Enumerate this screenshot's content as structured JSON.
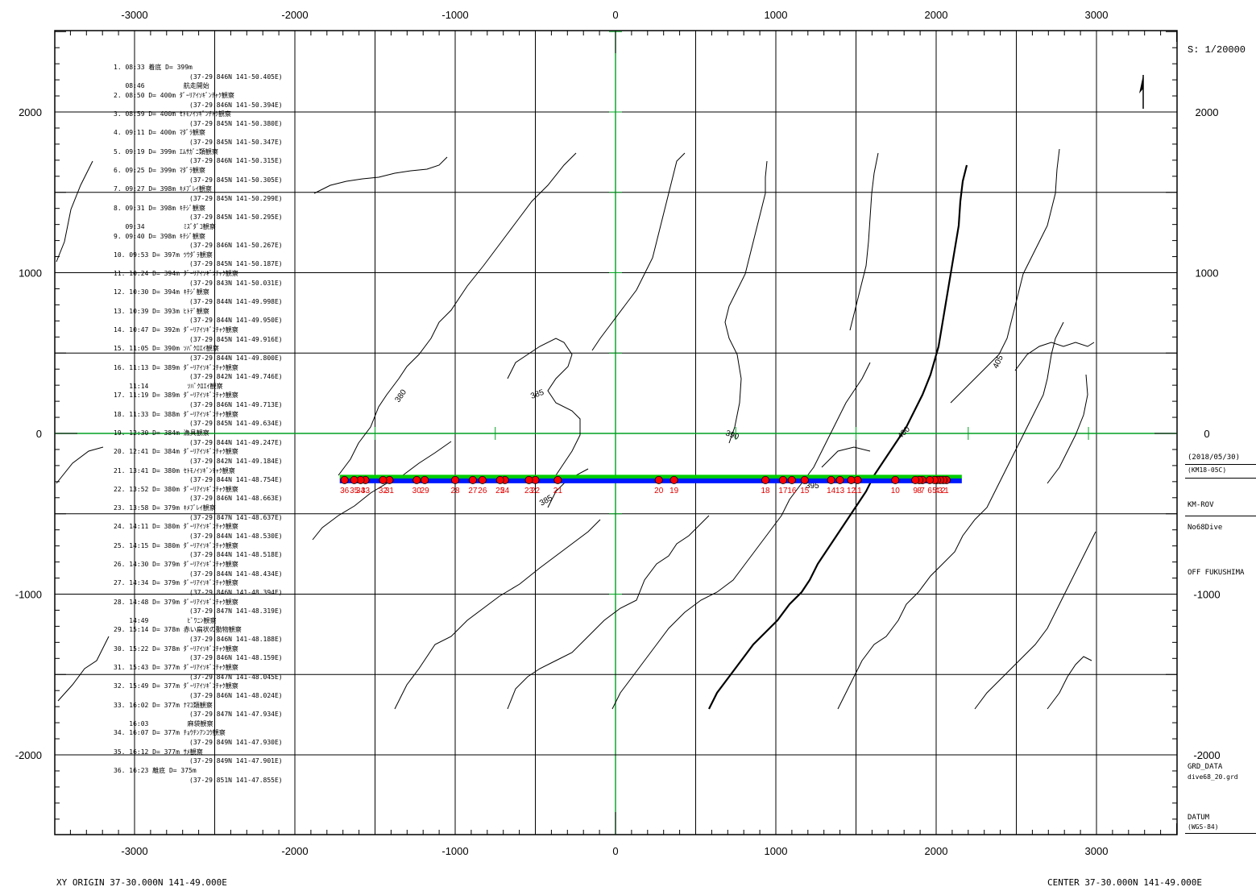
{
  "scale_label": "S:  1/20000",
  "footer": {
    "xy_origin": "XY ORIGIN  37-30.000N   141-49.000E",
    "center": "CENTER 37-30.000N   141-49.000E"
  },
  "right_panel": {
    "date": "(2018/05/30)",
    "cruise": "(KM18-05C)",
    "vehicle": "KM-ROV",
    "dive": "No68Dive",
    "area": "OFF FUKUSHIMA",
    "grd_title": "GRD_DATA",
    "grd_file": "dive68_20.grd",
    "datum_title": "DATUM",
    "datum_value": "(WGS-84)"
  },
  "axes": {
    "x_ticks": [
      "-3000",
      "-2000",
      "-1000",
      "0",
      "1000",
      "2000",
      "3000"
    ],
    "y_ticks": [
      "2000",
      "1000",
      "0",
      "-1000",
      "-2000"
    ]
  },
  "contour_labels": [
    "380",
    "385",
    "390",
    "395",
    "400",
    "405",
    "385"
  ],
  "track": {
    "color_ship": "#0018ff",
    "color_rov": "#00cc00",
    "marker_color": "#ff0000",
    "y": -290,
    "x_start": -1720,
    "x_end": 2160
  },
  "markers": [
    {
      "n": "1",
      "x": 2065
    },
    {
      "n": "2",
      "x": 2045
    },
    {
      "n": "3",
      "x": 2025
    },
    {
      "n": "4",
      "x": 2005
    },
    {
      "n": "5",
      "x": 1990
    },
    {
      "n": "6",
      "x": 1960
    },
    {
      "n": "7",
      "x": 1915
    },
    {
      "n": "8",
      "x": 1895
    },
    {
      "n": "9",
      "x": 1870
    },
    {
      "n": "10",
      "x": 1745
    },
    {
      "n": "11",
      "x": 1510
    },
    {
      "n": "12",
      "x": 1470
    },
    {
      "n": "13",
      "x": 1400
    },
    {
      "n": "14",
      "x": 1345
    },
    {
      "n": "15",
      "x": 1180
    },
    {
      "n": "16",
      "x": 1100
    },
    {
      "n": "17",
      "x": 1045
    },
    {
      "n": "18",
      "x": 935
    },
    {
      "n": "19",
      "x": 365
    },
    {
      "n": "20",
      "x": 270
    },
    {
      "n": "21",
      "x": -360
    },
    {
      "n": "22",
      "x": -500
    },
    {
      "n": "23",
      "x": -540
    },
    {
      "n": "24",
      "x": -690
    },
    {
      "n": "25",
      "x": -720
    },
    {
      "n": "26",
      "x": -830
    },
    {
      "n": "27",
      "x": -890
    },
    {
      "n": "28",
      "x": -1000
    },
    {
      "n": "29",
      "x": -1190
    },
    {
      "n": "30",
      "x": -1240
    },
    {
      "n": "31",
      "x": -1410
    },
    {
      "n": "32",
      "x": -1450
    },
    {
      "n": "33",
      "x": -1560
    },
    {
      "n": "34",
      "x": -1590
    },
    {
      "n": "35",
      "x": -1630
    },
    {
      "n": "36",
      "x": -1690
    }
  ],
  "log": [
    [
      "1. 08:33 着底 D= 399m",
      "(37-29.846N 141-50.405E)"
    ],
    [
      "   08:46          航走開始"
    ],
    [
      "2. 08:50 D= 400m ﾀﾞｰﾘｱｲｿｷﾞﾝﾁｬｸ観察",
      "(37-29.846N 141-50.394E)"
    ],
    [
      "3. 08:59 D= 400m ｾﾄﾓﾉｲｿｷﾞﾝﾁｬｸ観察",
      "(37-29.845N 141-50.380E)"
    ],
    [
      "4. 09:11 D= 400m ﾏﾀﾞﾗ観察",
      "(37-29.845N 141-50.347E)"
    ],
    [
      "5. 09:19 D= 399m ｴﾑｻｶﾞﾆ類観察",
      "(37-29.846N 141-50.315E)"
    ],
    [
      "6. 09:25 D= 399m ﾏﾀﾞﾗ観察",
      "(37-29.845N 141-50.305E)"
    ],
    [
      "7. 09:27 D= 398m ｷﾒﾌﾞﾚｲ観察",
      "(37-29.845N 141-50.299E)"
    ],
    [
      "8. 09:31 D= 398m ｷﾁｼﾞ観察",
      "(37-29.845N 141-50.295E)"
    ],
    [
      "   09:34          ﾐｽﾞﾀﾞｺ観察"
    ],
    [
      "9. 09:40 D= 398m ｷﾁｼﾞ観察",
      "(37-29.846N 141-50.267E)"
    ],
    [
      "10. 09:53 D= 397m ﾂｳﾀﾞﾗ観察",
      "(37-29.845N 141-50.187E)"
    ],
    [
      "11. 10:24 D= 394m ﾀﾞｰﾘｱｲｿｷﾞﾝﾁｬｸ観察",
      "(37-29.843N 141-50.031E)"
    ],
    [
      "12. 10:30 D= 394m ｷﾁｼﾞ観察",
      "(37-29.844N 141-49.998E)"
    ],
    [
      "13. 10:39 D= 393m ﾋﾄﾃﾞ観察",
      "(37-29.844N 141-49.950E)"
    ],
    [
      "14. 10:47 D= 392m ﾀﾞｰﾘｱｲｿｷﾞﾝﾁｬｸ観察",
      "(37-29.845N 141-49.916E)"
    ],
    [
      "15. 11:05 D= 390m ｿﾊﾞｸﾛｴｲ観察",
      "(37-29.844N 141-49.800E)"
    ],
    [
      "16. 11:13 D= 389m ﾀﾞｰﾘｱｲｿｷﾞﾝﾁｬｸ観察",
      "(37-29.842N 141-49.746E)"
    ],
    [
      "    11:14          ｿﾊﾞｸﾛｴｲ観察"
    ],
    [
      "17. 11:19 D= 389m ﾀﾞｰﾘｱｲｿｷﾞﾝﾁｬｸ観察",
      "(37-29.846N 141-49.713E)"
    ],
    [
      "18. 11:33 D= 388m ﾀﾞｰﾘｱｲｿｷﾞﾝﾁｬｸ観察",
      "(37-29.845N 141-49.634E)"
    ],
    [
      "19. 12:30 D= 384m 漁具観察",
      "(37-29.844N 141-49.247E)"
    ],
    [
      "20. 12:41 D= 384m ﾀﾞｰﾘｱｲｿｷﾞﾝﾁｬｸ観察",
      "(37-29.842N 141-49.184E)"
    ],
    [
      "21. 13:41 D= 380m ｾﾄﾓﾉｲｿｷﾞﾝﾁｬｸ観察",
      "(37-29.844N 141-48.754E)"
    ],
    [
      "22. 13:52 D= 380m ﾀﾞｰﾘｱｲｿｷﾞﾝﾁｬｸ観察",
      "(37-29.846N 141-48.663E)"
    ],
    [
      "23. 13:58 D= 379m ｷﾒﾌﾞﾚｲ観察",
      "(37-29.847N 141-48.637E)"
    ],
    [
      "24. 14:11 D= 380m ﾀﾞｰﾘｱｲｿｷﾞﾝﾁｬｸ観察",
      "(37-29.844N 141-48.530E)"
    ],
    [
      "25. 14:15 D= 380m ﾀﾞｰﾘｱｲｿｷﾞﾝﾁｬｸ観察",
      "(37-29.844N 141-48.518E)"
    ],
    [
      "26. 14:30 D= 379m ﾀﾞｰﾘｱｲｿｷﾞﾝﾁｬｸ観察",
      "(37-29.844N 141-48.434E)"
    ],
    [
      "27. 14:34 D= 379m ﾀﾞｰﾘｱｲｿｷﾞﾝﾁｬｸ観察",
      "(37-29.846N 141-48.394E)"
    ],
    [
      "28. 14:48 D= 379m ﾀﾞｰﾘｱｲｿｷﾞﾝﾁｬｸ観察",
      "(37-29.847N 141-48.319E)"
    ],
    [
      "    14:49          ﾋﾞﾜﾆﾝ観察"
    ],
    [
      "29. 15:14 D= 378m 赤い扁状の動物観察",
      "(37-29.846N 141-48.188E)"
    ],
    [
      "30. 15:22 D= 378m ﾀﾞｰﾘｱｲｿｷﾞﾝﾁｬｸ観察",
      "(37-29.846N 141-48.159E)"
    ],
    [
      "31. 15:43 D= 377m ﾀﾞｰﾘｱｲｿｷﾞﾝﾁｬｸ観察",
      "(37-29.847N 141-48.045E)"
    ],
    [
      "32. 15:49 D= 377m ﾀﾞｰﾘｱｲｿｷﾞﾝﾁｬｸ観察",
      "(37-29.846N 141-48.024E)"
    ],
    [
      "33. 16:02 D= 377m ﾅﾏｺ類観察",
      "(37-29.847N 141-47.934E)"
    ],
    [
      "    16:03          麻袋観察"
    ],
    [
      "34. 16:07 D= 377m ﾁｮｳﾁﾝｱﾝｺｳ観察",
      "(37-29.849N 141-47.930E)"
    ],
    [
      "35. 16:12 D= 377m ｻﾒ観察",
      "(37-29.849N 141-47.901E)"
    ],
    [
      "36. 16:23 離底 D= 375m",
      "(37-29.851N 141-47.855E)"
    ]
  ]
}
